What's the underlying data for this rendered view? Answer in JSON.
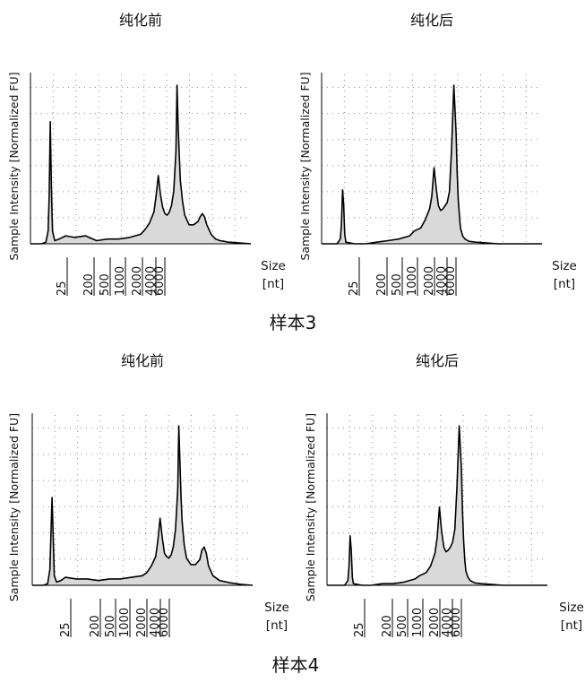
{
  "sample_labels": [
    "样本3",
    "样本4"
  ],
  "chart_data": [
    {
      "type": "line",
      "title": "纯化前",
      "ylabel": "Sample Intensity [Normalized FU]",
      "xlabel": "Size\n[nt]",
      "x_tick_labels": [
        "25",
        "200",
        "500",
        "1000",
        "2000",
        "4000",
        "6000"
      ],
      "grid": true,
      "fill": "#d9d9d9",
      "series": [
        {
          "x": [
            0,
            0.05,
            0.07,
            0.08,
            0.085,
            0.09,
            0.095,
            0.1,
            0.11,
            0.13,
            0.16,
            0.2,
            0.25,
            0.3,
            0.35,
            0.4,
            0.45,
            0.5,
            0.52,
            0.54,
            0.56,
            0.57,
            0.58,
            0.59,
            0.6,
            0.61,
            0.62,
            0.63,
            0.64,
            0.65,
            0.66,
            0.665,
            0.67,
            0.675,
            0.68,
            0.69,
            0.7,
            0.72,
            0.74,
            0.76,
            0.77,
            0.78,
            0.79,
            0.8,
            0.82,
            0.84,
            0.86,
            0.88,
            0.9,
            0.95,
            1.0
          ],
          "y": [
            0,
            0,
            0.01,
            0.08,
            0.3,
            0.77,
            0.35,
            0.08,
            0.02,
            0.03,
            0.05,
            0.04,
            0.05,
            0.02,
            0.03,
            0.03,
            0.04,
            0.06,
            0.09,
            0.13,
            0.2,
            0.3,
            0.43,
            0.31,
            0.23,
            0.19,
            0.18,
            0.2,
            0.24,
            0.33,
            0.58,
            1.0,
            0.75,
            0.56,
            0.4,
            0.27,
            0.18,
            0.12,
            0.12,
            0.14,
            0.17,
            0.19,
            0.17,
            0.12,
            0.06,
            0.03,
            0.02,
            0.015,
            0.01,
            0.005,
            0
          ]
        }
      ]
    },
    {
      "type": "line",
      "title": "纯化后",
      "ylabel": "Sample Intensity [Normalized FU]",
      "xlabel": "Size\n[nt]",
      "x_tick_labels": [
        "25",
        "200",
        "500",
        "1000",
        "2000",
        "4000",
        "6000"
      ],
      "grid": true,
      "fill": "#d9d9d9",
      "series": [
        {
          "x": [
            0,
            0.07,
            0.085,
            0.09,
            0.095,
            0.1,
            0.105,
            0.11,
            0.15,
            0.2,
            0.25,
            0.3,
            0.35,
            0.4,
            0.42,
            0.45,
            0.47,
            0.49,
            0.5,
            0.51,
            0.52,
            0.53,
            0.54,
            0.55,
            0.56,
            0.57,
            0.58,
            0.59,
            0.6,
            0.61,
            0.615,
            0.62,
            0.625,
            0.63,
            0.64,
            0.65,
            0.67,
            0.7,
            0.75,
            0.8,
            0.85,
            1.0
          ],
          "y": [
            0,
            0,
            0.03,
            0.12,
            0.34,
            0.25,
            0.06,
            0.01,
            0,
            0,
            0.01,
            0.02,
            0.03,
            0.05,
            0.08,
            0.1,
            0.15,
            0.22,
            0.3,
            0.48,
            0.35,
            0.24,
            0.21,
            0.22,
            0.24,
            0.26,
            0.33,
            0.6,
            1.0,
            0.7,
            0.45,
            0.28,
            0.18,
            0.1,
            0.05,
            0.03,
            0.015,
            0.01,
            0.005,
            0,
            0,
            0
          ]
        }
      ]
    },
    {
      "type": "line",
      "title": "纯化前",
      "ylabel": "Sample Intensity [Normalized FU]",
      "xlabel": "Size\n[nt]",
      "x_tick_labels": [
        "25",
        "200",
        "500",
        "1000",
        "2000",
        "4000",
        "6000"
      ],
      "grid": true,
      "fill": "#d9d9d9",
      "series": [
        {
          "x": [
            0,
            0.05,
            0.07,
            0.08,
            0.09,
            0.095,
            0.1,
            0.11,
            0.13,
            0.15,
            0.2,
            0.25,
            0.3,
            0.35,
            0.4,
            0.45,
            0.5,
            0.52,
            0.54,
            0.56,
            0.57,
            0.58,
            0.59,
            0.6,
            0.61,
            0.62,
            0.63,
            0.64,
            0.65,
            0.66,
            0.665,
            0.67,
            0.675,
            0.68,
            0.69,
            0.7,
            0.72,
            0.74,
            0.76,
            0.77,
            0.78,
            0.79,
            0.8,
            0.82,
            0.85,
            0.9,
            0.95,
            1.0
          ],
          "y": [
            0,
            0,
            0.01,
            0.1,
            0.55,
            0.3,
            0.06,
            0.02,
            0.03,
            0.05,
            0.04,
            0.04,
            0.03,
            0.04,
            0.04,
            0.05,
            0.06,
            0.08,
            0.12,
            0.18,
            0.28,
            0.42,
            0.3,
            0.2,
            0.18,
            0.17,
            0.19,
            0.24,
            0.35,
            0.6,
            1.0,
            0.78,
            0.55,
            0.4,
            0.25,
            0.17,
            0.13,
            0.13,
            0.16,
            0.22,
            0.24,
            0.2,
            0.12,
            0.06,
            0.03,
            0.015,
            0.005,
            0
          ]
        }
      ]
    },
    {
      "type": "line",
      "title": "纯化后",
      "ylabel": "Sample Intensity [Normalized FU]",
      "xlabel": "Size\n[nt]",
      "x_tick_labels": [
        "25",
        "200",
        "500",
        "1000",
        "2000",
        "4000",
        "6000"
      ],
      "grid": true,
      "fill": "#d9d9d9",
      "series": [
        {
          "x": [
            0,
            0.08,
            0.095,
            0.1,
            0.105,
            0.11,
            0.115,
            0.12,
            0.16,
            0.2,
            0.25,
            0.3,
            0.35,
            0.4,
            0.42,
            0.45,
            0.47,
            0.49,
            0.5,
            0.51,
            0.52,
            0.53,
            0.54,
            0.55,
            0.56,
            0.57,
            0.58,
            0.59,
            0.6,
            0.61,
            0.615,
            0.62,
            0.625,
            0.63,
            0.64,
            0.65,
            0.67,
            0.7,
            0.75,
            0.8,
            0.85,
            1.0
          ],
          "y": [
            0,
            0,
            0.03,
            0.12,
            0.31,
            0.22,
            0.05,
            0.01,
            0,
            0,
            0.01,
            0.01,
            0.02,
            0.04,
            0.06,
            0.08,
            0.12,
            0.2,
            0.3,
            0.49,
            0.34,
            0.24,
            0.21,
            0.22,
            0.24,
            0.27,
            0.35,
            0.62,
            1.0,
            0.72,
            0.46,
            0.28,
            0.16,
            0.09,
            0.05,
            0.03,
            0.015,
            0.01,
            0.005,
            0,
            0,
            0
          ]
        }
      ]
    }
  ]
}
